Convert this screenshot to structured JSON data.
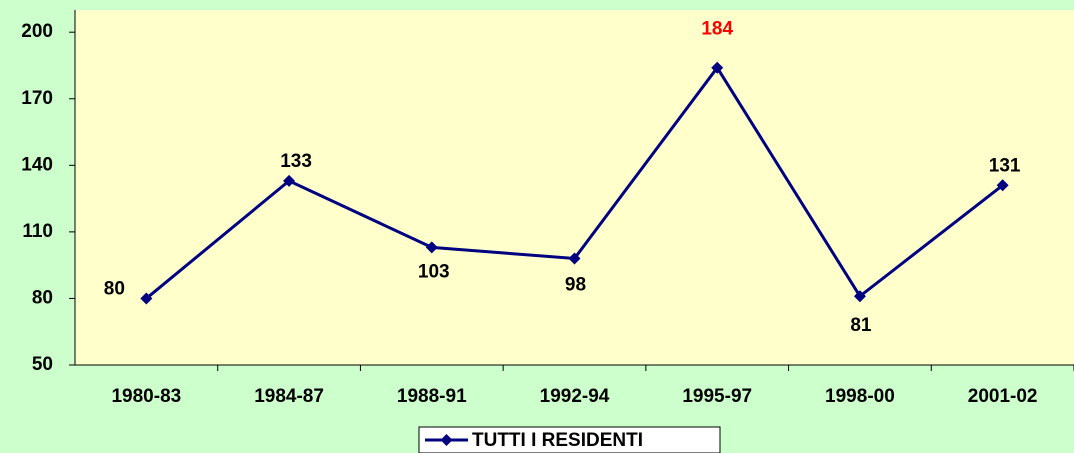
{
  "chart_data": {
    "type": "line",
    "categories": [
      "1980-83",
      "1984-87",
      "1988-91",
      "1992-94",
      "1995-97",
      "1998-00",
      "2001-02"
    ],
    "series": [
      {
        "name": "TUTTI I RESIDENTI",
        "color": "#000080",
        "values": [
          80,
          133,
          103,
          98,
          184,
          81,
          131
        ]
      }
    ],
    "label_colors": [
      "#000000",
      "#000000",
      "#000000",
      "#000000",
      "#ff0000",
      "#000000",
      "#000000"
    ],
    "ylim": [
      50,
      210
    ],
    "yticks": [
      50,
      80,
      110,
      140,
      170,
      200
    ],
    "grid": false,
    "legend": "bottom"
  }
}
